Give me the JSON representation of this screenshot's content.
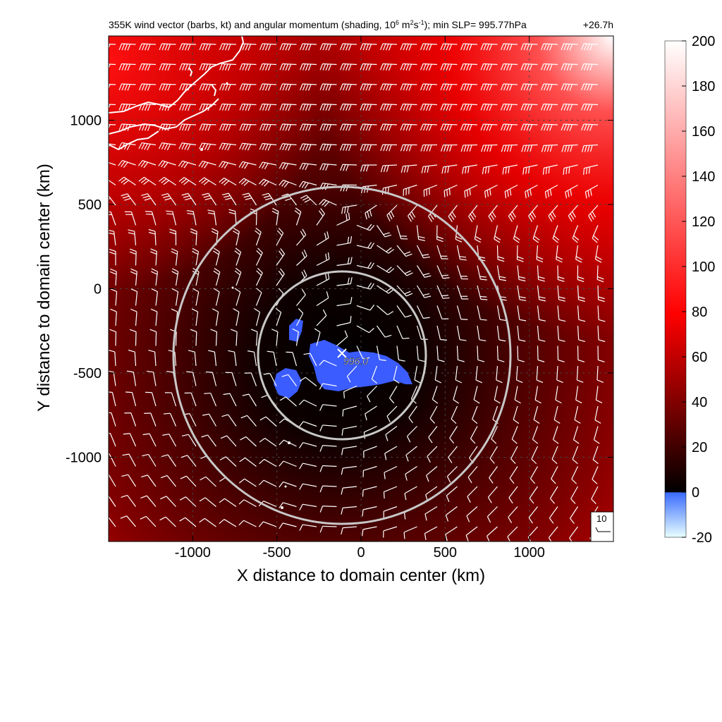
{
  "chart_data": {
    "type": "heatmap",
    "title": "355K wind vector (barbs, kt) and angular momentum (shading, 10",
    "title_exp1": "6",
    "title_mid1": " m",
    "title_exp2": "2",
    "title_mid2": "s",
    "title_exp3": "-1",
    "title_tail": "); min SLP= 995.77hPa",
    "forecast_time": "+26.7h",
    "xlabel": "X distance to domain center (km)",
    "ylabel": "Y distance to domain center (km)",
    "xlim": [
      -1500,
      1500
    ],
    "ylim": [
      -1500,
      1500
    ],
    "x_ticks": [
      -1000,
      -500,
      0,
      500,
      1000
    ],
    "y_ticks": [
      -1000,
      -500,
      0,
      500,
      1000
    ],
    "x_tick_labels": [
      "-1000",
      "-500",
      "0",
      "500",
      "1000"
    ],
    "y_tick_labels": [
      "-1000",
      "-500",
      "0",
      "500",
      "1000"
    ],
    "grid": true,
    "colorbar": {
      "min": -20,
      "max": 200,
      "ticks": [
        -20,
        0,
        20,
        40,
        60,
        80,
        100,
        120,
        140,
        160,
        180,
        200
      ],
      "tick_labels": [
        "-20",
        "0",
        "20",
        "40",
        "60",
        "80",
        "100",
        "120",
        "140",
        "160",
        "180",
        "200"
      ],
      "colors": {
        "neg_low": "#e8ffff",
        "neg_high": "#3a6bff",
        "zero": "#000000",
        "mid": "#ff0000",
        "high": "#ffffff"
      }
    },
    "storm_center": {
      "x": -110,
      "y": -380,
      "label": "996.0"
    },
    "range_rings_km": [
      500,
      1000
    ],
    "reference_barb": {
      "label": "10"
    },
    "colors": {
      "coast": "#ffffff",
      "barb": "#ffffff",
      "ring": "#c8c8c8",
      "negative_region": "#3b5cff"
    }
  }
}
